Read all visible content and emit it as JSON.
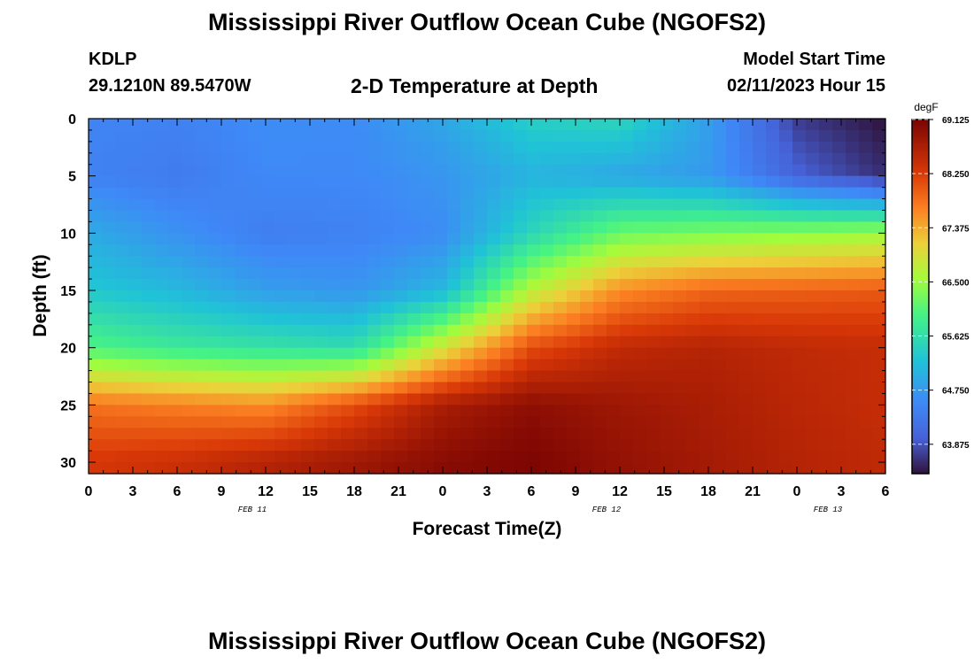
{
  "header": {
    "title": "Mississippi River Outflow Ocean Cube (NGOFS2)",
    "station_id": "KDLP",
    "station_coords": "29.1210N  89.5470W",
    "subtitle": "2-D Temperature at Depth",
    "model_start_label": "Model Start Time",
    "model_start_value": "02/11/2023 Hour 15"
  },
  "footer": {
    "title": "Mississippi River Outflow Ocean Cube (NGOFS2)"
  },
  "chart_data": {
    "type": "heatmap",
    "title": "2-D Temperature at Depth",
    "xlabel": "Forecast Time(Z)",
    "ylabel": "Depth (ft)",
    "x_hours_since_start": [
      0,
      54
    ],
    "x_tick_labels": [
      "0",
      "3",
      "6",
      "9",
      "12",
      "15",
      "18",
      "21",
      "0",
      "3",
      "6",
      "9",
      "12",
      "15",
      "18",
      "21",
      "0",
      "3",
      "6"
    ],
    "date_labels": [
      {
        "label": "FEB 11",
        "at_tick": 3.7
      },
      {
        "label": "FEB 12",
        "at_tick": 11.7
      },
      {
        "label": "FEB 13",
        "at_tick": 16.7
      }
    ],
    "y_ticks": [
      0,
      5,
      10,
      15,
      20,
      25,
      30
    ],
    "y_range": [
      0,
      31
    ],
    "colorbar": {
      "unit": "degF",
      "range": [
        63.4,
        69.125
      ],
      "tick_labels": [
        69.125,
        68.25,
        67.375,
        66.5,
        65.625,
        64.75,
        63.875
      ]
    },
    "depths_ft": [
      0,
      5,
      10,
      15,
      20,
      25,
      30
    ],
    "times_hours": [
      0,
      6,
      12,
      18,
      24,
      30,
      36,
      42,
      48,
      54
    ],
    "temperature_degF": [
      [
        64.5,
        64.45,
        64.6,
        64.58,
        64.9,
        65.4,
        65.5,
        64.8,
        63.7,
        63.4
      ],
      [
        64.45,
        64.35,
        64.55,
        64.55,
        64.7,
        65.05,
        64.9,
        64.75,
        64.0,
        63.6
      ],
      [
        64.95,
        64.65,
        64.4,
        64.45,
        64.6,
        65.5,
        66.2,
        66.3,
        66.4,
        66.5
      ],
      [
        65.3,
        65.1,
        64.8,
        64.7,
        65.1,
        66.7,
        67.6,
        67.9,
        67.95,
        68.0
      ],
      [
        66.0,
        65.8,
        65.7,
        65.6,
        66.9,
        68.1,
        68.5,
        68.6,
        68.5,
        68.45
      ],
      [
        67.8,
        67.7,
        67.6,
        68.1,
        68.7,
        68.95,
        68.8,
        68.7,
        68.55,
        68.45
      ],
      [
        68.3,
        68.4,
        68.6,
        68.8,
        69.0,
        69.1,
        68.9,
        68.75,
        68.6,
        68.5
      ]
    ]
  }
}
